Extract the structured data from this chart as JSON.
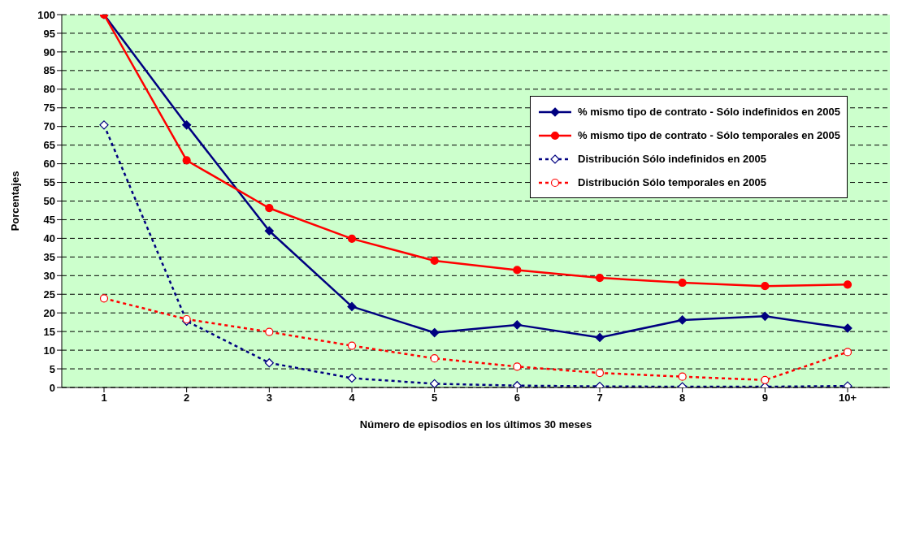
{
  "chart_data": {
    "type": "line",
    "xlabel": "Número de episodios en los últimos 30 meses",
    "ylabel": "Porcentajes",
    "categories": [
      "1",
      "2",
      "3",
      "4",
      "5",
      "6",
      "7",
      "8",
      "9",
      "10+"
    ],
    "ylim": [
      0,
      100
    ],
    "yticks": [
      0,
      5,
      10,
      15,
      20,
      25,
      30,
      35,
      40,
      45,
      50,
      55,
      60,
      65,
      70,
      75,
      80,
      85,
      90,
      95,
      100
    ],
    "grid": "y",
    "legend": "top right",
    "series": [
      {
        "name": "% mismo tipo de contrato - Sólo indefinidos en 2005",
        "color": "#000080",
        "marker": "diamond",
        "line_style": "solid",
        "values": [
          100,
          70.4,
          42,
          21.7,
          14.7,
          16.8,
          13.4,
          18.1,
          19.1,
          15.9
        ]
      },
      {
        "name": "% mismo tipo de contrato - Sólo temporales en 2005",
        "color": "#ff0000",
        "marker": "circle",
        "line_style": "solid",
        "values": [
          100,
          60.9,
          48.1,
          39.9,
          34,
          31.5,
          29.4,
          28.1,
          27.2,
          27.6
        ]
      },
      {
        "name": "Distribución Sólo indefinidos en 2005",
        "color": "#000080",
        "marker": "diamond",
        "line_style": "dotted",
        "values": [
          70.4,
          17.8,
          6.6,
          2.5,
          1.0,
          0.5,
          0.3,
          0.2,
          0.2,
          0.4
        ]
      },
      {
        "name": "Distribución Sólo temporales en 2005",
        "color": "#ff0000",
        "marker": "circle",
        "line_style": "dotted",
        "values": [
          23.9,
          18.3,
          14.9,
          11.2,
          7.8,
          5.6,
          3.9,
          2.9,
          2.0,
          9.5
        ]
      }
    ]
  }
}
